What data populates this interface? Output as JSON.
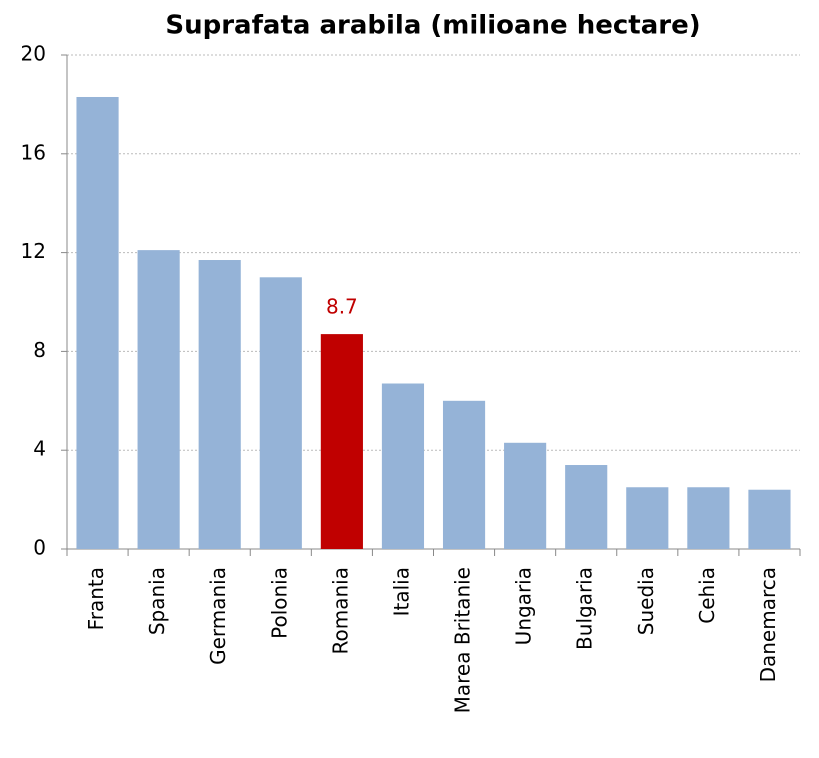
{
  "chart_data": {
    "type": "bar",
    "title": "Suprafata arabila (milioane hectare)",
    "categories": [
      "Franta",
      "Spania",
      "Germania",
      "Polonia",
      "Romania",
      "Italia",
      "Marea Britanie",
      "Ungaria",
      "Bulgaria",
      "Suedia",
      "Cehia",
      "Danemarca"
    ],
    "values": [
      18.3,
      12.1,
      11.7,
      11.0,
      8.7,
      6.7,
      6.0,
      4.3,
      3.4,
      2.5,
      2.5,
      2.4
    ],
    "color": "#95b3d7",
    "highlight": {
      "category": "Romania",
      "color": "#c00000"
    },
    "ylim": [
      0,
      20
    ],
    "yticks": [
      0,
      4,
      8,
      12,
      16,
      20
    ],
    "grid": true
  }
}
